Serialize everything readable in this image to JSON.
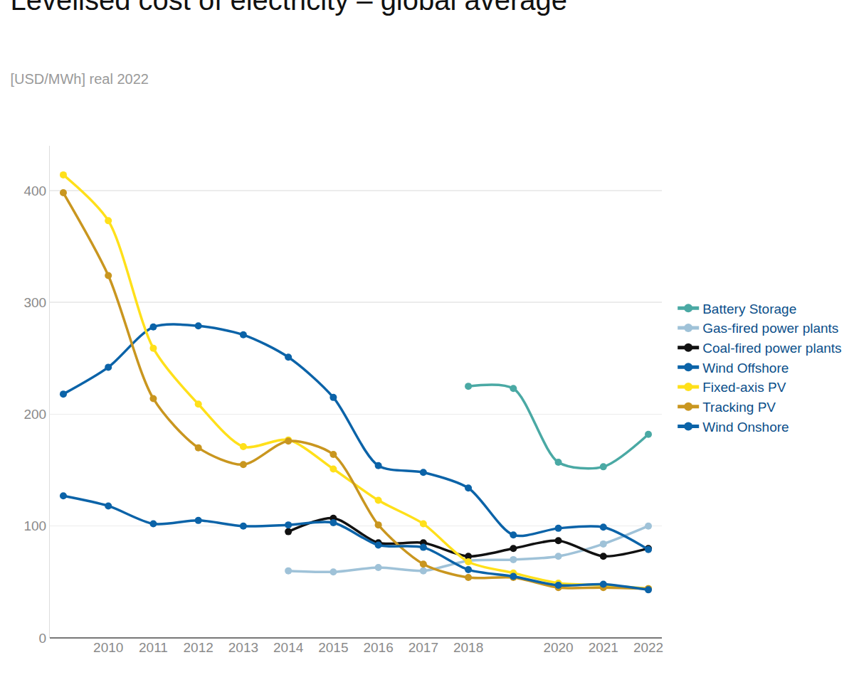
{
  "chart_data": {
    "type": "line",
    "title": "Levelised cost of electricity – global average",
    "subtitle": "[USD/MWh] real 2022",
    "categories": [
      null,
      "2010",
      "2011",
      "2012",
      "2013",
      "2014",
      "2015",
      "2016",
      "2017",
      "2018",
      null,
      "2020",
      "2021",
      "2022"
    ],
    "series": [
      {
        "name": "Battery Storage",
        "color": "#4aa9a4",
        "values": [
          null,
          null,
          null,
          null,
          null,
          null,
          null,
          null,
          null,
          225,
          223,
          157,
          153,
          182
        ]
      },
      {
        "name": "Gas-fired power plants",
        "color": "#9fc2d8",
        "values": [
          null,
          null,
          null,
          null,
          null,
          60,
          59,
          63,
          60,
          69,
          70,
          73,
          84,
          100
        ]
      },
      {
        "name": "Coal-fired power plants",
        "color": "#111111",
        "values": [
          null,
          null,
          null,
          null,
          null,
          95,
          107,
          85,
          85,
          73,
          80,
          87,
          73,
          80
        ]
      },
      {
        "name": "Wind Offshore",
        "color": "#0b63a8",
        "values": [
          218,
          242,
          278,
          279,
          271,
          251,
          215,
          154,
          148,
          134,
          92,
          98,
          99,
          79
        ]
      },
      {
        "name": "Fixed-axis PV",
        "color": "#ffe01a",
        "values": [
          414,
          373,
          259,
          209,
          171,
          177,
          151,
          123,
          102,
          68,
          58,
          49,
          47,
          44
        ]
      },
      {
        "name": "Tracking PV",
        "color": "#c9961f",
        "values": [
          398,
          324,
          214,
          170,
          155,
          176,
          164,
          101,
          66,
          54,
          54,
          45,
          45,
          44
        ]
      },
      {
        "name": "Wind Onshore",
        "color": "#0b63a8",
        "values": [
          127,
          118,
          102,
          105,
          100,
          101,
          103,
          83,
          81,
          61,
          55,
          47,
          48,
          43
        ]
      }
    ],
    "ylim": [
      0,
      440
    ],
    "yticks": [
      0,
      100,
      200,
      300,
      400
    ],
    "grid": true,
    "legend": "right",
    "marker": "circle",
    "line_style": "solid"
  }
}
